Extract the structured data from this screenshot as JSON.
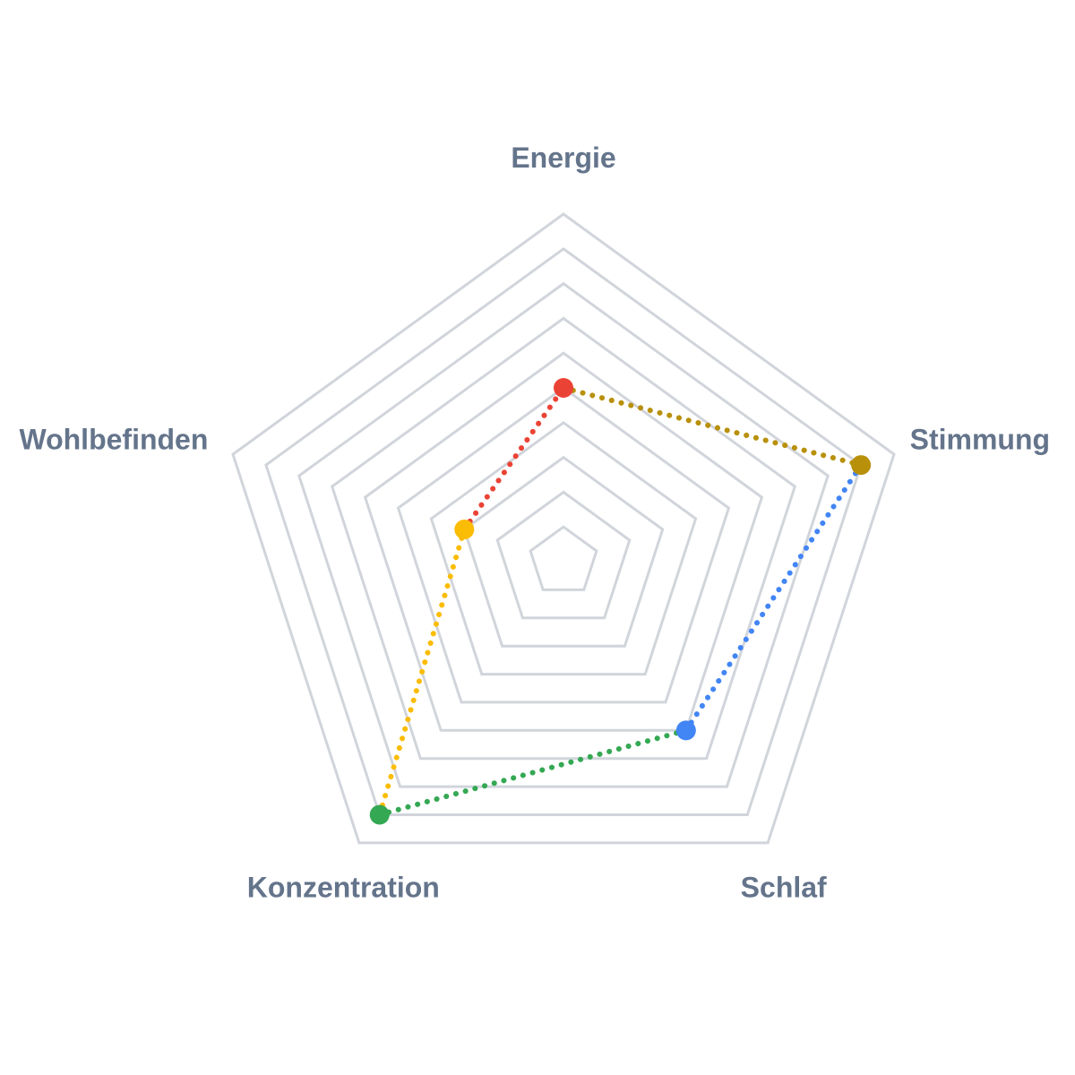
{
  "chart_data": {
    "type": "radar",
    "title": "",
    "categories": [
      "Energie",
      "Stimmung",
      "Schlaf",
      "Konzentration",
      "Wohlbefinden"
    ],
    "values": [
      5,
      9,
      6,
      9,
      3
    ],
    "rlim": [
      0,
      10
    ],
    "grid_levels": 10,
    "grid": true,
    "legend": "none",
    "edge_colors": [
      "#b8900a",
      "#4285f4",
      "#34a853",
      "#fbbc04",
      "#ea4335"
    ],
    "point_colors": [
      "#ea4335",
      "#b8900a",
      "#4285f4",
      "#34a853",
      "#fbbc04"
    ],
    "grid_color": "#d1d5db",
    "label_color": "#64748b"
  }
}
